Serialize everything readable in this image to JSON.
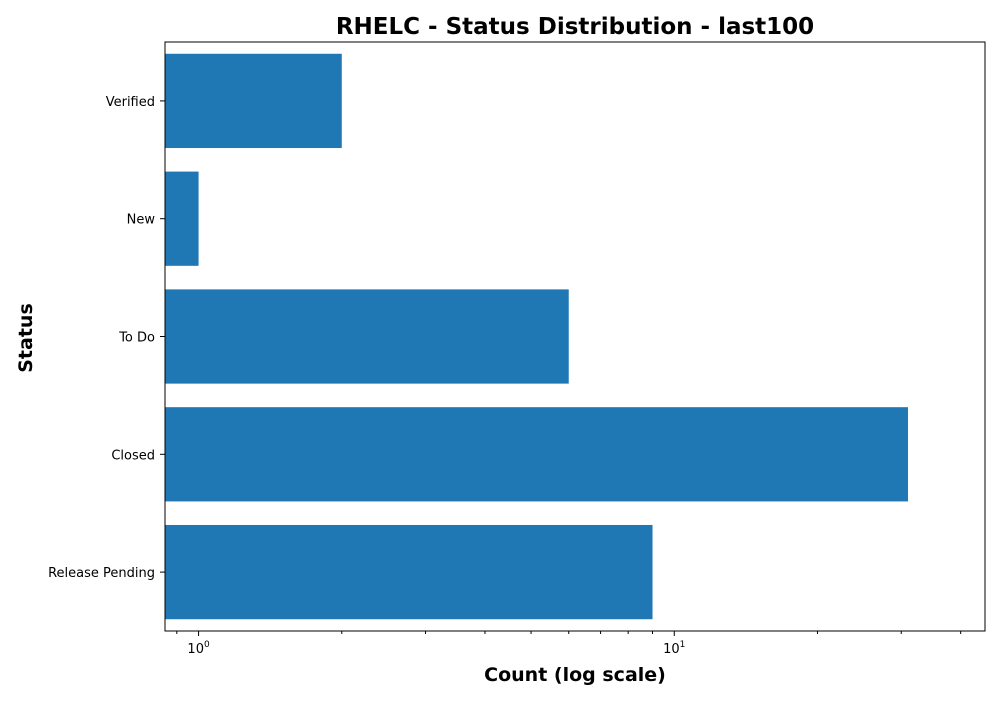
{
  "chart_data": {
    "type": "bar",
    "orientation": "horizontal",
    "title": "RHELC - Status Distribution - last100",
    "xlabel": "Count (log scale)",
    "ylabel": "Status",
    "x_scale": "log",
    "xlim": [
      0.85,
      45
    ],
    "x_ticks": [
      {
        "value": 1,
        "base": "10",
        "exp": "0"
      },
      {
        "value": 10,
        "base": "10",
        "exp": "1"
      }
    ],
    "categories": [
      "Release Pending",
      "Closed",
      "To Do",
      "New",
      "Verified"
    ],
    "values": [
      9,
      31,
      6,
      1,
      2
    ],
    "bar_color": "#1f77b4",
    "grid": false,
    "legend": "none"
  }
}
